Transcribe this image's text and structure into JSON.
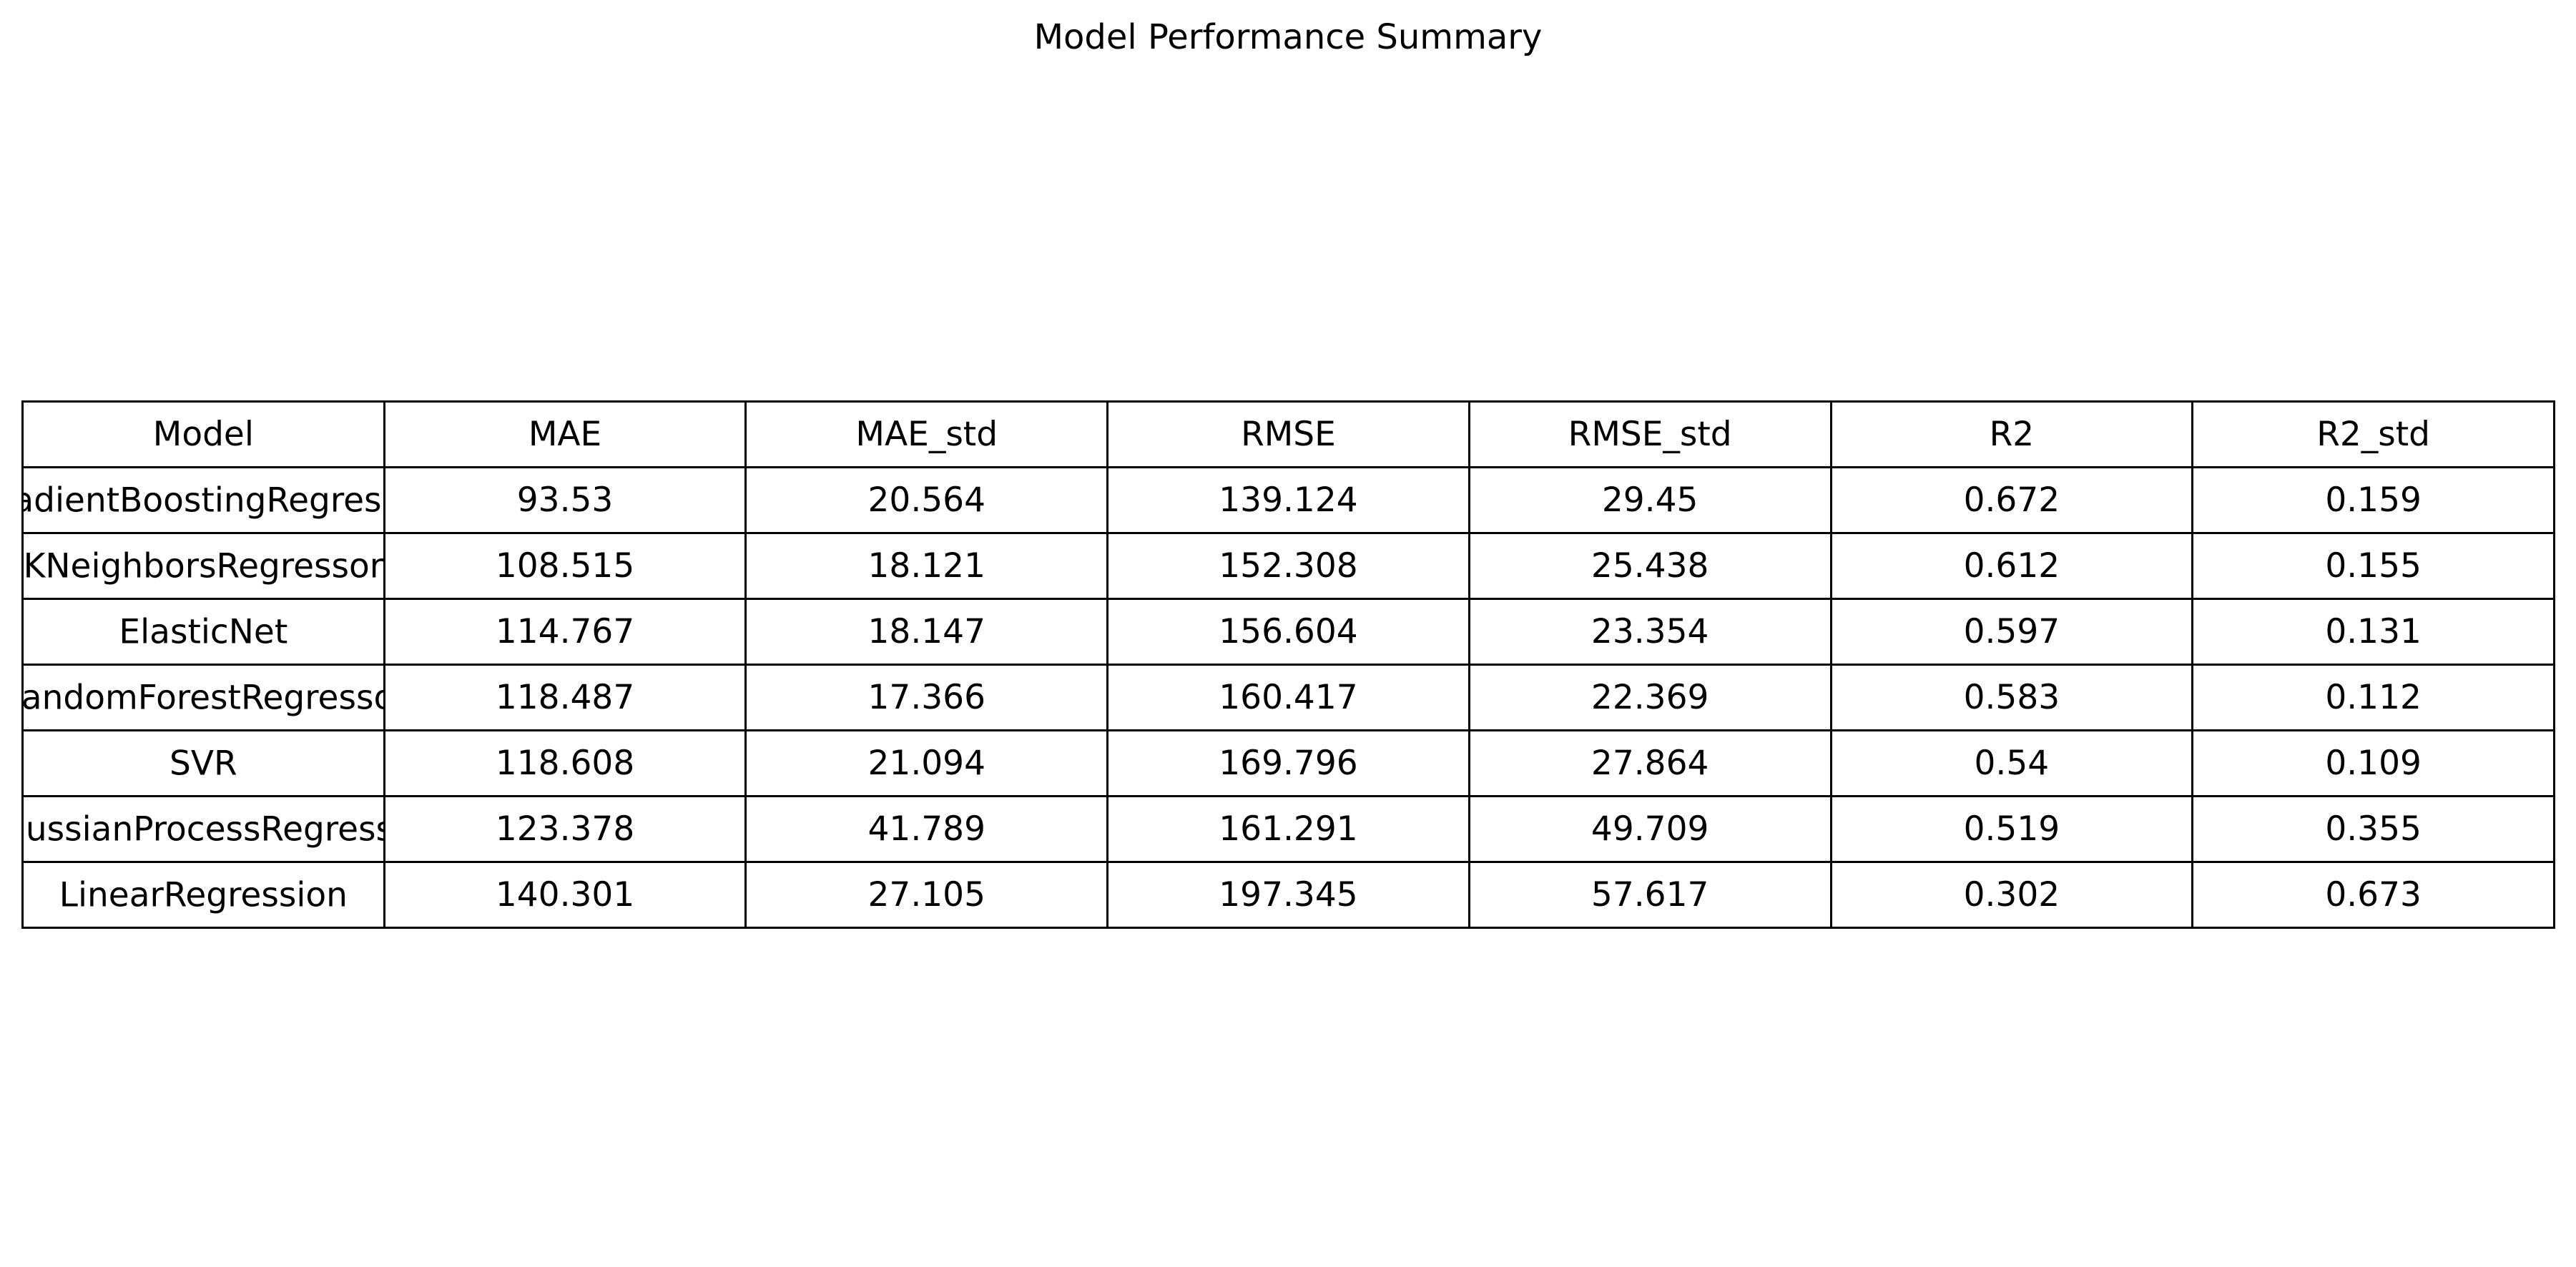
{
  "chart_data": {
    "type": "table",
    "title": "Model Performance Summary",
    "columns": [
      "Model",
      "MAE",
      "MAE_std",
      "RMSE",
      "RMSE_std",
      "R2",
      "R2_std"
    ],
    "rows": [
      [
        "GradientBoostingRegressor",
        "93.53",
        "20.564",
        "139.124",
        "29.45",
        "0.672",
        "0.159"
      ],
      [
        "KNeighborsRegressor",
        "108.515",
        "18.121",
        "152.308",
        "25.438",
        "0.612",
        "0.155"
      ],
      [
        "ElasticNet",
        "114.767",
        "18.147",
        "156.604",
        "23.354",
        "0.597",
        "0.131"
      ],
      [
        "RandomForestRegressor",
        "118.487",
        "17.366",
        "160.417",
        "22.369",
        "0.583",
        "0.112"
      ],
      [
        "SVR",
        "118.608",
        "21.094",
        "169.796",
        "27.864",
        "0.54",
        "0.109"
      ],
      [
        "GaussianProcessRegressor",
        "123.378",
        "41.789",
        "161.291",
        "49.709",
        "0.519",
        "0.355"
      ],
      [
        "LinearRegression",
        "140.301",
        "27.105",
        "197.345",
        "57.617",
        "0.302",
        "0.673"
      ]
    ]
  }
}
